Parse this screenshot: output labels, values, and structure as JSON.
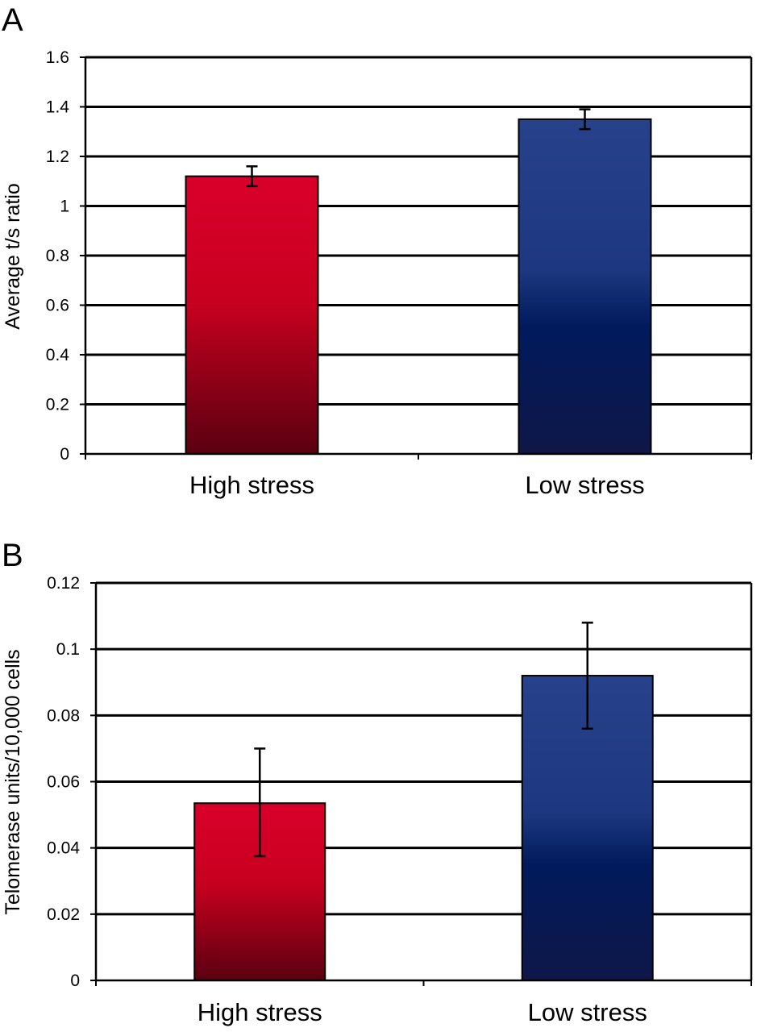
{
  "chart_data": [
    {
      "panel_label": "A",
      "type": "bar",
      "categories": [
        "High stress",
        "Low stress"
      ],
      "values": [
        1.12,
        1.35
      ],
      "error_low": [
        1.08,
        1.31
      ],
      "error_high": [
        1.16,
        1.39
      ],
      "xlabel": "",
      "ylabel": "Average t/s ratio",
      "ylim": [
        0,
        1.6
      ],
      "yticks": [
        "0",
        "0.2",
        "0.4",
        "0.6",
        "0.8",
        "1",
        "1.2",
        "1.4",
        "1.6"
      ],
      "grid": true,
      "legend": "none",
      "colors": {
        "high_stress": "#d9002a",
        "low_stress": "#27428a"
      }
    },
    {
      "panel_label": "B",
      "type": "bar",
      "categories": [
        "High stress",
        "Low stress"
      ],
      "values": [
        0.0535,
        0.092
      ],
      "error_low": [
        0.0375,
        0.076
      ],
      "error_high": [
        0.07,
        0.108
      ],
      "xlabel": "",
      "ylabel": "Telomerase units/10,000 cells",
      "ylim": [
        0,
        0.12
      ],
      "yticks": [
        "0",
        "0.02",
        "0.04",
        "0.06",
        "0.08",
        "0.1",
        "0.12"
      ],
      "grid": true,
      "legend": "none",
      "colors": {
        "high_stress": "#d9002a",
        "low_stress": "#27428a"
      }
    }
  ]
}
